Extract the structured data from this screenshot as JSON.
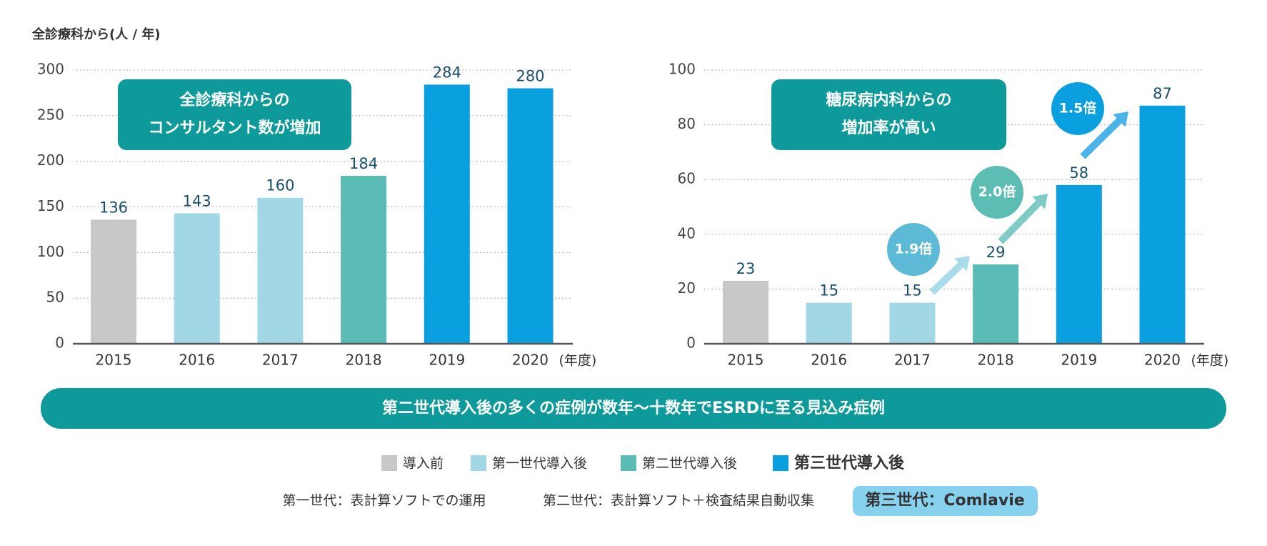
{
  "chart_data": [
    {
      "type": "bar",
      "y_label": "全診療科から(人 / 年)",
      "x_label": "(年度)",
      "annotation": [
        "全診療科からの",
        "コンサルタント数が増加"
      ],
      "categories": [
        "2015",
        "2016",
        "2017",
        "2018",
        "2019",
        "2020"
      ],
      "values": [
        136,
        143,
        160,
        184,
        284,
        280
      ],
      "colors": [
        "#c8c8c8",
        "#a2d8e6",
        "#a2d8e6",
        "#5bbcb6",
        "#0aa0e0",
        "#0aa0e0"
      ],
      "ylim": [
        0,
        300
      ],
      "yticks": [
        0,
        50,
        100,
        150,
        200,
        250,
        300
      ],
      "grid": true
    },
    {
      "type": "bar",
      "x_label": "(年度)",
      "annotation": [
        "糖尿病内科からの",
        "増加率が高い"
      ],
      "categories": [
        "2015",
        "2016",
        "2017",
        "2018",
        "2019",
        "2020"
      ],
      "values": [
        23,
        15,
        15,
        29,
        58,
        87
      ],
      "colors": [
        "#c8c8c8",
        "#a2d8e6",
        "#a2d8e6",
        "#5bbcb6",
        "#0aa0e0",
        "#0aa0e0"
      ],
      "growth_labels": [
        "1.9倍",
        "2.0倍",
        "1.5倍"
      ],
      "ylim": [
        0,
        100
      ],
      "yticks": [
        0,
        20,
        40,
        60,
        80,
        100
      ],
      "grid": true
    }
  ],
  "banner": "第二世代導入後の多くの症例が数年〜十数年でESRDに至る見込み症例",
  "legend": [
    {
      "label": "導入前",
      "color": "#c8c8c8"
    },
    {
      "label": "第一世代導入後",
      "color": "#a2d8e6"
    },
    {
      "label": "第二世代導入後",
      "color": "#5bbcb6"
    },
    {
      "label": "第三世代導入後",
      "color": "#0aa0e0"
    }
  ],
  "notes": [
    "第一世代：表計算ソフトでの運用",
    "第二世代：表計算ソフト＋検査結果自動収集",
    "第三世代：Comlavie"
  ]
}
